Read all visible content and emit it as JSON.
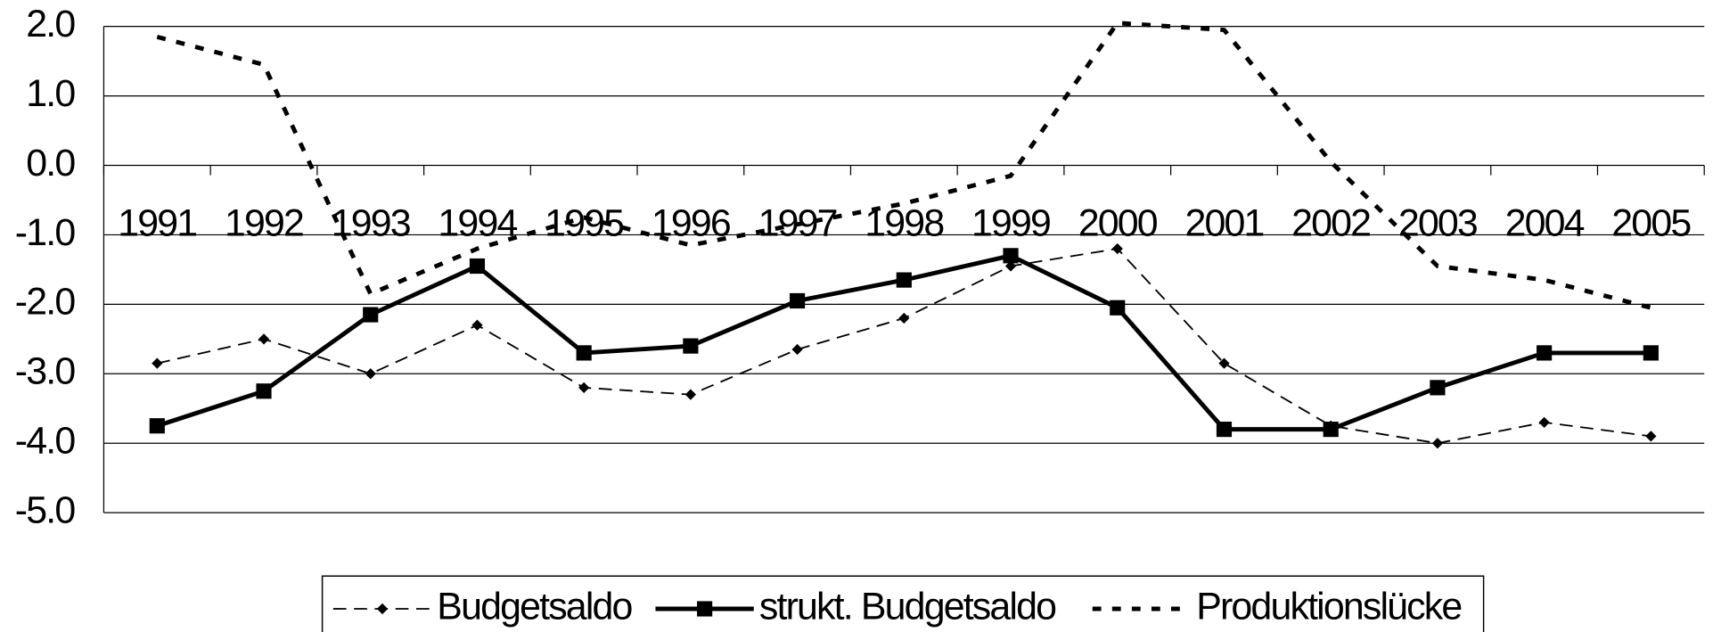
{
  "chart_data": {
    "type": "line",
    "categories": [
      "1991",
      "1992",
      "1993",
      "1994",
      "1995",
      "1996",
      "1997",
      "1998",
      "1999",
      "2000",
      "2001",
      "2002",
      "2003",
      "2004",
      "2005"
    ],
    "series": [
      {
        "name": "Budgetsaldo",
        "color": "#000000",
        "values": [
          -2.85,
          -2.5,
          -3.0,
          -2.3,
          -3.2,
          -3.3,
          -2.65,
          -2.2,
          -1.45,
          -1.2,
          -2.85,
          -3.75,
          -4.0,
          -3.7,
          -3.9
        ]
      },
      {
        "name": "strukt. Budgetsaldo",
        "color": "#000000",
        "values": [
          -3.75,
          -3.25,
          -2.15,
          -1.45,
          -2.7,
          -2.6,
          -1.95,
          -1.65,
          -1.3,
          -2.05,
          -3.8,
          -3.8,
          -3.2,
          -2.7,
          -2.7
        ]
      },
      {
        "name": "Produktionslücke",
        "color": "#000000",
        "values": [
          1.85,
          1.45,
          -1.85,
          -1.2,
          -0.75,
          -1.15,
          -0.85,
          -0.55,
          -0.15,
          2.05,
          1.95,
          0.05,
          -1.45,
          -1.65,
          -2.05
        ]
      }
    ],
    "ylim": [
      -5,
      2
    ],
    "yticks": [
      {
        "value": -5,
        "label": "-5.0"
      },
      {
        "value": -4,
        "label": "-4.0"
      },
      {
        "value": -3,
        "label": "-3.0"
      },
      {
        "value": -2,
        "label": "-2.0"
      },
      {
        "value": -1,
        "label": "-1.0"
      },
      {
        "value": 0,
        "label": "0.0"
      },
      {
        "value": 1,
        "label": "1.0"
      },
      {
        "value": 2,
        "label": "2.0"
      }
    ],
    "grid": true
  }
}
